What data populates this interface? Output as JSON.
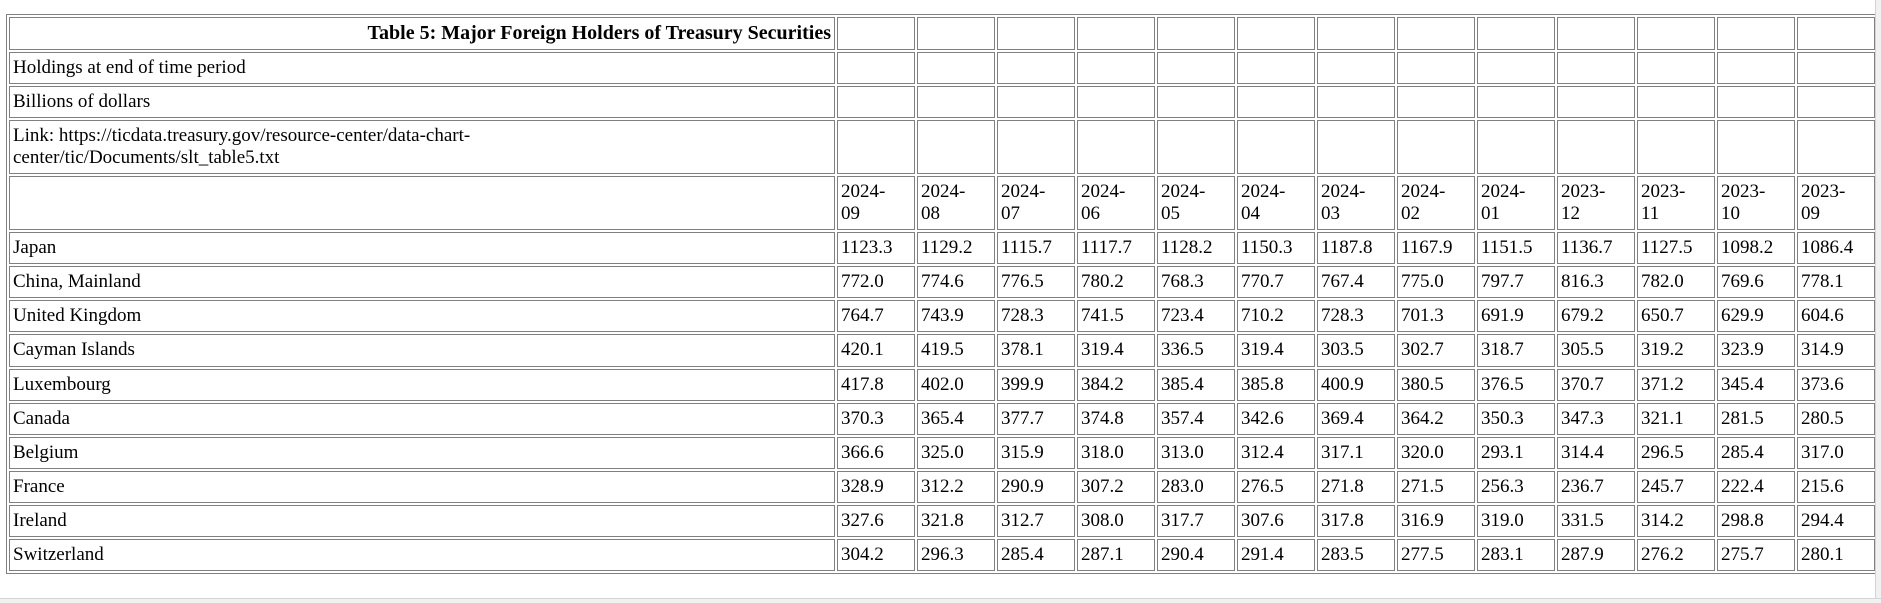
{
  "page": {
    "background": "#ffffff",
    "text_color": "#000000",
    "border_color": "#808080",
    "scrollbar_color": "#f1f1f1"
  },
  "table": {
    "title": "Table 5: Major Foreign Holders of Treasury Securities",
    "subtitle1": "Holdings at end of time period",
    "subtitle2": "Billions of dollars",
    "link_text": "Link: https://ticdata.treasury.gov/resource-center/data-chart-\ncenter/tic/Documents/slt_table5.txt",
    "columns": [
      "2024-09",
      "2024-08",
      "2024-07",
      "2024-06",
      "2024-05",
      "2024-04",
      "2024-03",
      "2024-02",
      "2024-01",
      "2023-12",
      "2023-11",
      "2023-10",
      "2023-09"
    ],
    "rows": [
      {
        "label": "Japan",
        "values": [
          "1123.3",
          "1129.2",
          "1115.7",
          "1117.7",
          "1128.2",
          "1150.3",
          "1187.8",
          "1167.9",
          "1151.5",
          "1136.7",
          "1127.5",
          "1098.2",
          "1086.4"
        ]
      },
      {
        "label": "China, Mainland",
        "values": [
          "772.0",
          "774.6",
          "776.5",
          "780.2",
          "768.3",
          "770.7",
          "767.4",
          "775.0",
          "797.7",
          "816.3",
          "782.0",
          "769.6",
          "778.1"
        ]
      },
      {
        "label": "United Kingdom",
        "values": [
          "764.7",
          "743.9",
          "728.3",
          "741.5",
          "723.4",
          "710.2",
          "728.3",
          "701.3",
          "691.9",
          "679.2",
          "650.7",
          "629.9",
          "604.6"
        ]
      },
      {
        "label": "Cayman Islands",
        "values": [
          "420.1",
          "419.5",
          "378.1",
          "319.4",
          "336.5",
          "319.4",
          "303.5",
          "302.7",
          "318.7",
          "305.5",
          "319.2",
          "323.9",
          "314.9"
        ]
      },
      {
        "label": "Luxembourg",
        "values": [
          "417.8",
          "402.0",
          "399.9",
          "384.2",
          "385.4",
          "385.8",
          "400.9",
          "380.5",
          "376.5",
          "370.7",
          "371.2",
          "345.4",
          "373.6"
        ]
      },
      {
        "label": "Canada",
        "values": [
          "370.3",
          "365.4",
          "377.7",
          "374.8",
          "357.4",
          "342.6",
          "369.4",
          "364.2",
          "350.3",
          "347.3",
          "321.1",
          "281.5",
          "280.5"
        ]
      },
      {
        "label": "Belgium",
        "values": [
          "366.6",
          "325.0",
          "315.9",
          "318.0",
          "313.0",
          "312.4",
          "317.1",
          "320.0",
          "293.1",
          "314.4",
          "296.5",
          "285.4",
          "317.0"
        ]
      },
      {
        "label": "France",
        "values": [
          "328.9",
          "312.2",
          "290.9",
          "307.2",
          "283.0",
          "276.5",
          "271.8",
          "271.5",
          "256.3",
          "236.7",
          "245.7",
          "222.4",
          "215.6"
        ]
      },
      {
        "label": "Ireland",
        "values": [
          "327.6",
          "321.8",
          "312.7",
          "308.0",
          "317.7",
          "307.6",
          "317.8",
          "316.9",
          "319.0",
          "331.5",
          "314.2",
          "298.8",
          "294.4"
        ]
      },
      {
        "label": "Switzerland",
        "values": [
          "304.2",
          "296.3",
          "285.4",
          "287.1",
          "290.4",
          "291.4",
          "283.5",
          "277.5",
          "283.1",
          "287.9",
          "276.2",
          "275.7",
          "280.1"
        ]
      }
    ]
  }
}
